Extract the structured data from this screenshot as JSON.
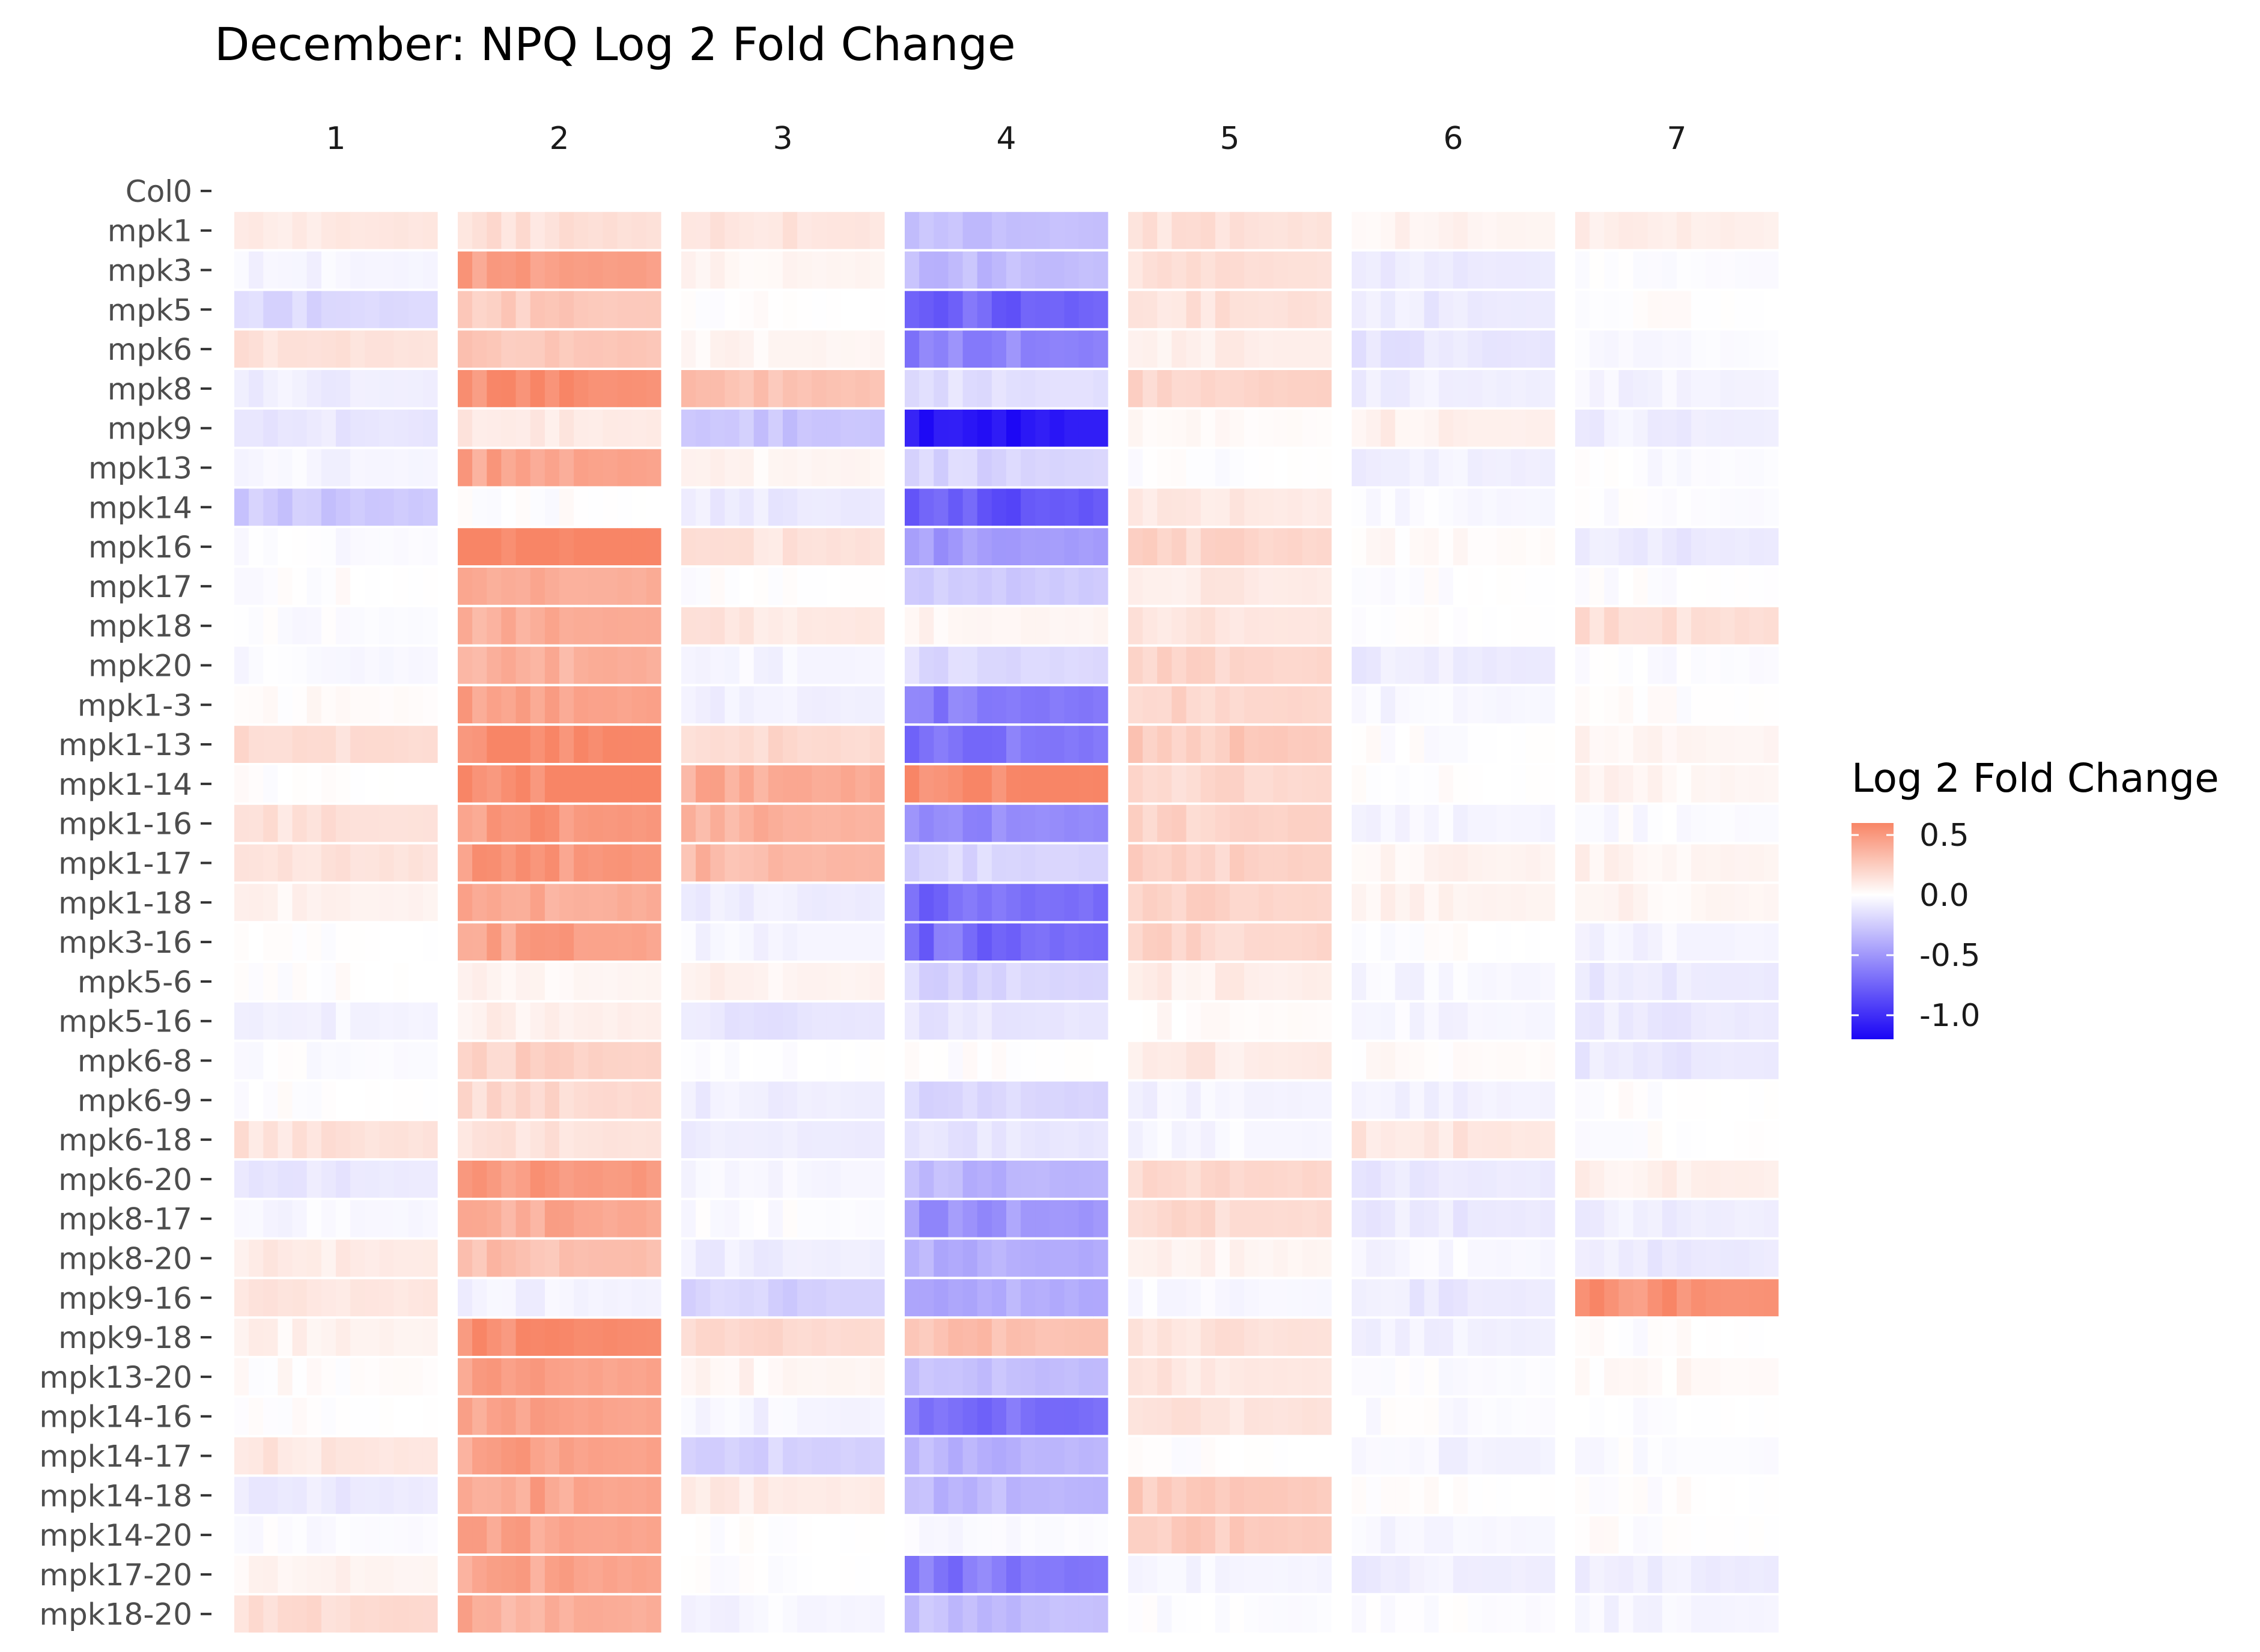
{
  "chart_data": {
    "type": "heatmap",
    "title": "December: NPQ Log 2 Fold Change",
    "facets": [
      "1",
      "2",
      "3",
      "4",
      "5",
      "6",
      "7"
    ],
    "rows": [
      "Col0",
      "mpk1",
      "mpk3",
      "mpk5",
      "mpk6",
      "mpk8",
      "mpk9",
      "mpk13",
      "mpk14",
      "mpk16",
      "mpk17",
      "mpk18",
      "mpk20",
      "mpk1-3",
      "mpk1-13",
      "mpk1-14",
      "mpk1-16",
      "mpk1-17",
      "mpk1-18",
      "mpk3-16",
      "mpk5-6",
      "mpk5-16",
      "mpk6-8",
      "mpk6-9",
      "mpk6-18",
      "mpk6-20",
      "mpk8-17",
      "mpk8-20",
      "mpk9-16",
      "mpk9-18",
      "mpk13-20",
      "mpk14-16",
      "mpk14-17",
      "mpk14-18",
      "mpk14-20",
      "mpk17-20",
      "mpk18-20"
    ],
    "values": [
      [
        0.0,
        0.0,
        0.0,
        0.0,
        0.0,
        0.0,
        0.0
      ],
      [
        0.12,
        0.16,
        0.12,
        -0.3,
        0.14,
        0.05,
        0.08
      ],
      [
        -0.05,
        0.48,
        0.05,
        -0.32,
        0.15,
        -0.1,
        -0.02
      ],
      [
        -0.18,
        0.26,
        0.0,
        -0.75,
        0.15,
        -0.1,
        0.0
      ],
      [
        0.14,
        0.28,
        0.05,
        -0.6,
        0.08,
        -0.12,
        -0.02
      ],
      [
        -0.08,
        0.55,
        0.3,
        -0.15,
        0.22,
        -0.08,
        -0.06
      ],
      [
        -0.12,
        0.1,
        -0.28,
        -1.1,
        0.02,
        0.08,
        -0.08
      ],
      [
        -0.05,
        0.45,
        0.05,
        -0.2,
        0.0,
        -0.08,
        -0.02
      ],
      [
        -0.26,
        0.0,
        -0.1,
        -0.8,
        0.1,
        -0.04,
        -0.02
      ],
      [
        -0.02,
        0.62,
        0.14,
        -0.48,
        0.2,
        0.02,
        -0.1
      ],
      [
        0.0,
        0.4,
        0.0,
        -0.25,
        0.1,
        0.0,
        0.0
      ],
      [
        -0.02,
        0.4,
        0.12,
        0.05,
        0.12,
        0.0,
        0.16
      ],
      [
        -0.04,
        0.4,
        -0.05,
        -0.18,
        0.2,
        -0.1,
        -0.02
      ],
      [
        0.02,
        0.45,
        -0.08,
        -0.65,
        0.2,
        -0.04,
        0.0
      ],
      [
        0.18,
        0.58,
        0.18,
        -0.65,
        0.26,
        0.0,
        0.05
      ],
      [
        0.0,
        0.6,
        0.42,
        0.6,
        0.18,
        0.0,
        0.05
      ],
      [
        0.15,
        0.5,
        0.38,
        -0.55,
        0.22,
        -0.05,
        -0.02
      ],
      [
        0.14,
        0.52,
        0.35,
        -0.2,
        0.22,
        0.06,
        0.06
      ],
      [
        0.06,
        0.4,
        -0.1,
        -0.7,
        0.2,
        0.06,
        0.05
      ],
      [
        0.0,
        0.45,
        -0.05,
        -0.7,
        0.2,
        0.0,
        -0.05
      ],
      [
        0.0,
        0.05,
        0.06,
        -0.2,
        0.08,
        -0.04,
        -0.1
      ],
      [
        -0.06,
        0.08,
        -0.12,
        -0.12,
        0.02,
        -0.04,
        -0.1
      ],
      [
        -0.02,
        0.22,
        0.0,
        0.0,
        0.1,
        0.02,
        -0.1
      ],
      [
        0.0,
        0.18,
        -0.08,
        -0.2,
        -0.06,
        -0.06,
        0.0
      ],
      [
        0.14,
        0.14,
        -0.1,
        -0.12,
        -0.04,
        0.12,
        0.0
      ],
      [
        -0.1,
        0.5,
        -0.05,
        -0.35,
        0.2,
        -0.1,
        0.08
      ],
      [
        -0.04,
        0.42,
        -0.02,
        -0.5,
        0.18,
        -0.1,
        -0.08
      ],
      [
        0.1,
        0.32,
        -0.08,
        -0.4,
        0.05,
        -0.04,
        -0.1
      ],
      [
        0.12,
        -0.06,
        -0.22,
        -0.4,
        -0.04,
        -0.1,
        0.55
      ],
      [
        0.06,
        0.58,
        0.18,
        0.3,
        0.14,
        -0.08,
        0.0
      ],
      [
        0.02,
        0.45,
        0.05,
        -0.32,
        0.12,
        -0.02,
        0.03
      ],
      [
        0.0,
        0.45,
        -0.06,
        -0.7,
        0.14,
        -0.02,
        0.0
      ],
      [
        0.12,
        0.45,
        -0.22,
        -0.35,
        0.0,
        -0.06,
        -0.02
      ],
      [
        -0.1,
        0.45,
        0.1,
        -0.35,
        0.26,
        0.0,
        0.0
      ],
      [
        -0.02,
        0.45,
        0.0,
        -0.02,
        0.26,
        -0.04,
        0.0
      ],
      [
        0.05,
        0.45,
        0.0,
        -0.65,
        -0.05,
        -0.08,
        -0.1
      ],
      [
        0.18,
        0.4,
        -0.05,
        -0.3,
        -0.02,
        -0.02,
        -0.05
      ]
    ],
    "legend": {
      "title": "Log 2 Fold Change",
      "ticks": [
        "0.5",
        "0.0",
        "-0.5",
        "-1.0"
      ],
      "tick_values": [
        0.5,
        0.0,
        -0.5,
        -1.0
      ],
      "range": [
        -1.2,
        0.6
      ],
      "placement": "right"
    },
    "colors": {
      "low": "#1a05f5",
      "mid": "#ffffff",
      "high": "#f88566"
    }
  }
}
